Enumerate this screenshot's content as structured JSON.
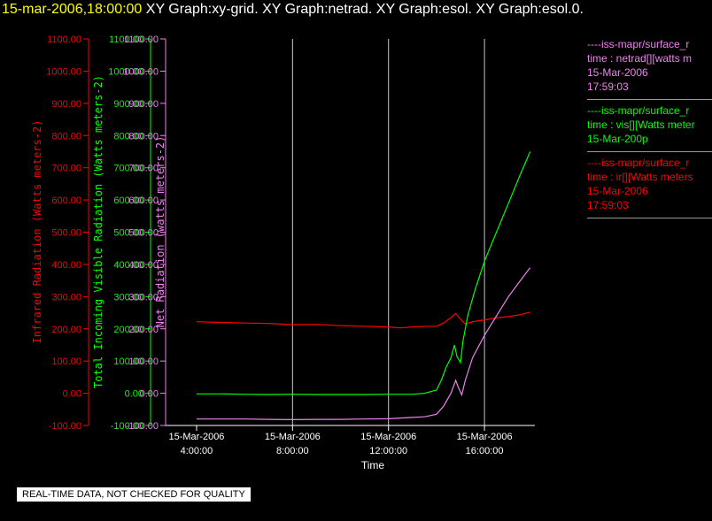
{
  "header": {
    "timestamp": "15-mar-2006,18:00:00",
    "graphs": "XY Graph:xy-grid.  XY Graph:netrad.  XY Graph:esol.  XY Graph:esol.0."
  },
  "legend": [
    {
      "line1": "----iss-mapr/surface_r",
      "line2": "time : netrad[][watts m",
      "line3": "15-Mar-2006",
      "line4": "17:59:03",
      "color": "#ee82ee"
    },
    {
      "line1": "----iss-mapr/surface_r",
      "line2": "time : vis[][Watts meter",
      "line3": "15-Mar-200p",
      "line4": "",
      "color": "#00ff00"
    },
    {
      "line1": "----iss-mapr/surface_r",
      "line2": "time : ir[][Watts meters",
      "line3": "15-Mar-2006",
      "line4": "17:59:03",
      "color": "#ff0000"
    }
  ],
  "notice": "REAL-TIME DATA, NOT CHECKED FOR QUALITY",
  "chart_data": {
    "type": "line",
    "xlabel": "Time",
    "x_ticks": [
      {
        "hours": 4,
        "line1": "15-Mar-2006",
        "line2": "4:00:00"
      },
      {
        "hours": 8,
        "line1": "15-Mar-2006",
        "line2": "8:00:00"
      },
      {
        "hours": 12,
        "line1": "15-Mar-2006",
        "line2": "12:00:00"
      },
      {
        "hours": 16,
        "line1": "15-Mar-2006",
        "line2": "16:00:00"
      }
    ],
    "xlim_hours": [
      4,
      18.25
    ],
    "grid": true,
    "y_axes": [
      {
        "name": "Infrared Radiation (Watts meters-2)",
        "color": "#ff0000",
        "ylim": [
          -100,
          1100
        ],
        "ticks": [
          "1100.00",
          "1000.00",
          "900.00",
          "800.00",
          "700.00",
          "600.00",
          "500.00",
          "400.00",
          "300.00",
          "200.00",
          "100.00",
          "0.00",
          "-100.00"
        ]
      },
      {
        "name": "Total Incoming Visible Radiation (Watts meters-2)",
        "color": "#00ff00",
        "ylim": [
          -100,
          1100
        ],
        "ticks": [
          "1100.00",
          "1000.00",
          "900.00",
          "800.00",
          "700.00",
          "600.00",
          "500.00",
          "400.00",
          "300.00",
          "200.00",
          "100.00",
          "0.00",
          "-100.00"
        ]
      },
      {
        "name": "Net Radiation (watts meters-2)",
        "color": "#ee82ee",
        "ylim": [
          -100,
          1100
        ],
        "ticks": [
          "1100.00",
          "1000.00",
          "900.00",
          "800.00",
          "700.00",
          "600.00",
          "500.00",
          "400.00",
          "300.00",
          "200.00",
          "100.00",
          "0.00",
          "-100.00"
        ]
      }
    ],
    "series": [
      {
        "name": "ir",
        "color": "#ff0000",
        "x": [
          4,
          5,
          6,
          7,
          8,
          9,
          10,
          11,
          12,
          12.5,
          13,
          13.5,
          14,
          14.3,
          14.6,
          14.8,
          15,
          15.2,
          15.5,
          16,
          16.5,
          17,
          17.5,
          17.9
        ],
        "y": [
          222,
          220,
          218,
          217,
          213,
          214,
          210,
          208,
          206,
          203,
          206,
          208,
          208,
          218,
          235,
          248,
          230,
          215,
          222,
          228,
          234,
          238,
          244,
          252
        ]
      },
      {
        "name": "vis",
        "color": "#00ff00",
        "x": [
          4,
          5,
          6,
          7,
          8,
          9,
          10,
          11,
          12,
          13,
          13.5,
          14,
          14.2,
          14.4,
          14.6,
          14.75,
          14.85,
          15,
          15.1,
          15.3,
          15.6,
          16,
          16.5,
          17,
          17.5,
          17.9
        ],
        "y": [
          -2,
          -2,
          -3,
          -4,
          -3,
          -4,
          -4,
          -4,
          -3,
          -3,
          0,
          10,
          40,
          80,
          110,
          150,
          115,
          95,
          160,
          240,
          320,
          410,
          500,
          590,
          680,
          750
        ]
      },
      {
        "name": "netrad",
        "color": "#ee82ee",
        "x": [
          4,
          5,
          6,
          7,
          8,
          9,
          10,
          11,
          12,
          13,
          13.5,
          14,
          14.3,
          14.6,
          14.8,
          14.9,
          15.05,
          15.2,
          15.5,
          16,
          16.5,
          17,
          17.5,
          17.9
        ],
        "y": [
          -80,
          -80,
          -80,
          -81,
          -82,
          -81,
          -81,
          -80,
          -79,
          -75,
          -73,
          -65,
          -40,
          0,
          40,
          20,
          -5,
          40,
          110,
          180,
          240,
          300,
          350,
          390
        ]
      }
    ]
  }
}
